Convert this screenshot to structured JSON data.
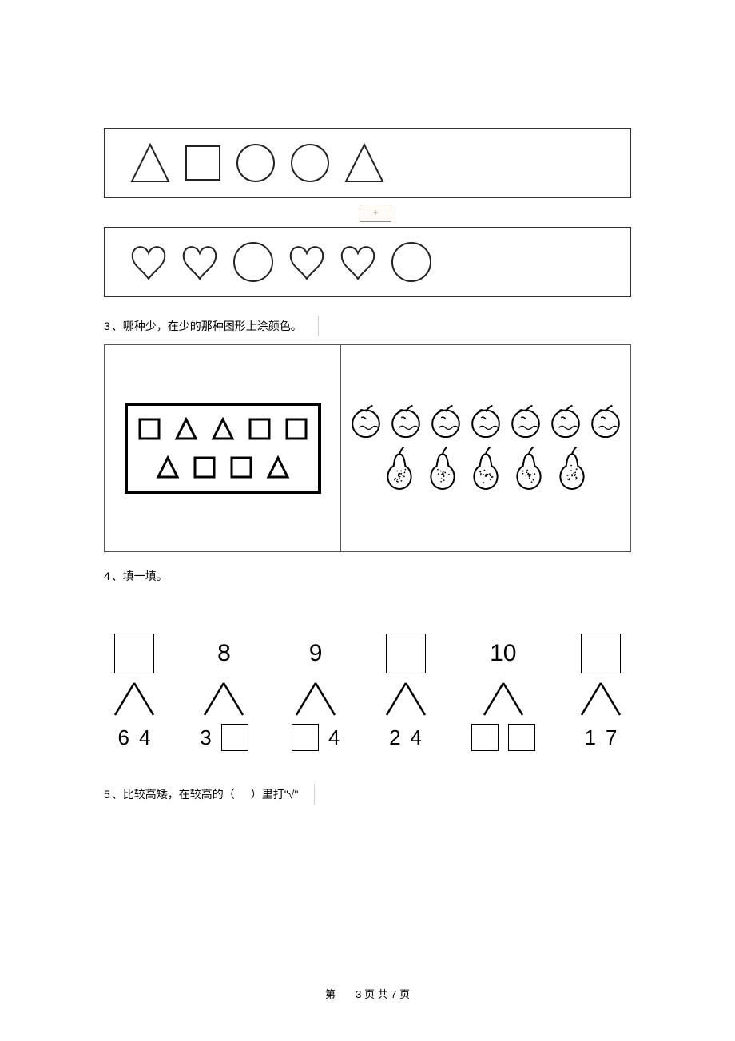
{
  "colors": {
    "stroke": "#222222",
    "strokeThin": "#555555",
    "strokeLight": "#9a8b7a",
    "hatch": "#2b2b2b",
    "bg": "#ffffff"
  },
  "row1": [
    "triangle",
    "square",
    "circle",
    "circle",
    "triangle"
  ],
  "plusLabel": "+",
  "row2": [
    "heart",
    "heart",
    "circle-big",
    "heart",
    "heart",
    "circle-big"
  ],
  "q3": {
    "num": "3",
    "text": "、哪种少，在少的那种图形上涂颜色。",
    "leftRow1": [
      "sq-sm",
      "tri-sm",
      "tri-sm",
      "sq-sm",
      "sq-sm"
    ],
    "leftRow2": [
      "tri-sm",
      "sq-sm",
      "sq-sm",
      "tri-sm"
    ],
    "rightRow1Count": 7,
    "rightRow2Count": 5
  },
  "q4": {
    "num": "4",
    "text": "、填一填。",
    "items": [
      {
        "top": {
          "type": "box"
        },
        "bottom": [
          "6",
          "4"
        ]
      },
      {
        "top": {
          "type": "num",
          "val": "8"
        },
        "bottom": [
          "3",
          {
            "type": "box"
          }
        ]
      },
      {
        "top": {
          "type": "num",
          "val": "9"
        },
        "bottom": [
          {
            "type": "box"
          },
          "4"
        ]
      },
      {
        "top": {
          "type": "box"
        },
        "bottom": [
          "2",
          "4"
        ]
      },
      {
        "top": {
          "type": "num",
          "val": "10"
        },
        "bottom": [
          {
            "type": "box"
          },
          {
            "type": "box"
          }
        ]
      },
      {
        "top": {
          "type": "box"
        },
        "bottom": [
          "1",
          "7"
        ]
      }
    ]
  },
  "q5": {
    "num": "5",
    "text_a": " 、比较高矮，在较高的（",
    "text_b": "）里打\"√\""
  },
  "footer": {
    "a": "第",
    "b": "3",
    "c": " 页 共 ",
    "d": "7",
    "e": " 页"
  }
}
